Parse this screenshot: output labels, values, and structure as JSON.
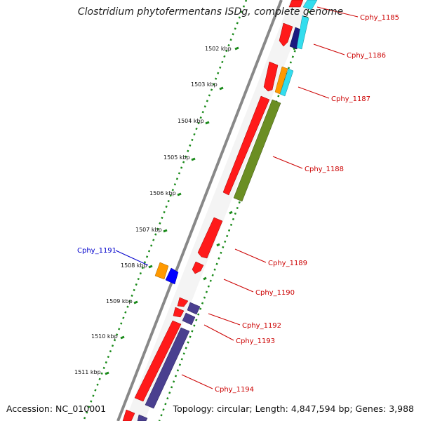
{
  "title": "Clostridium phytofermentans ISDg, complete genome",
  "footer": {
    "accession": "Accession: NC_010001",
    "summary": "Topology: circular; Length: 4,847,594 bp; Genes: 3,988"
  },
  "colors": {
    "backbone": "#808080",
    "tick": "#1a8a1a",
    "label_red": "#cc0000",
    "label_blue": "#0000cc",
    "gene_red": "#ff1a1a",
    "gene_olive": "#6b8e23",
    "gene_navy": "#1a1a80",
    "gene_cyan": "#33ddee",
    "gene_orange": "#ff9900",
    "gene_blue": "#0000ff",
    "gene_slate": "#4a3f8f"
  },
  "scale_ticks": [
    "1502 kbp",
    "1503 kbp",
    "1504 kbp",
    "1505 kbp",
    "1506 kbp",
    "1507 kbp",
    "1508 kbp",
    "1509 kbp",
    "1510 kbp",
    "1511 kbp"
  ],
  "gene_labels": {
    "cphy_1185": "Cphy_1185",
    "cphy_1186": "Cphy_1186",
    "cphy_1187": "Cphy_1187",
    "cphy_1188": "Cphy_1188",
    "cphy_1189": "Cphy_1189",
    "cphy_1190": "Cphy_1190",
    "cphy_1191": "Cphy_1191",
    "cphy_1192": "Cphy_1192",
    "cphy_1193": "Cphy_1193",
    "cphy_1194": "Cphy_1194"
  }
}
